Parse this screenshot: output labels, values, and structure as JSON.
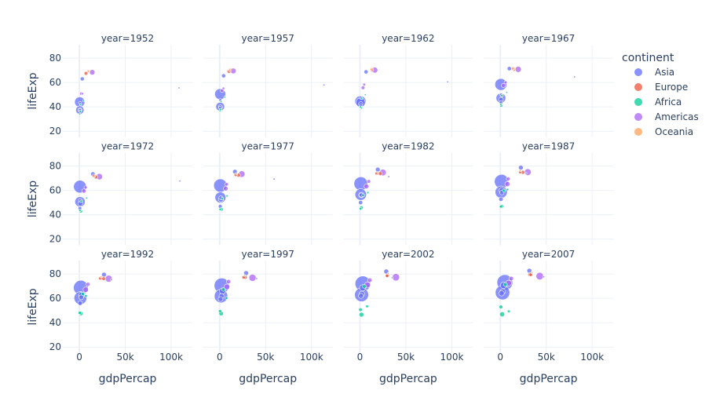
{
  "chart_data": {
    "type": "scatter",
    "facet_by": "year",
    "facet_columns": 4,
    "x": "gdpPercap",
    "y": "lifeExp",
    "size": "pop",
    "color": "continent",
    "xlabel": "gdpPercap",
    "ylabel": "lifeExp",
    "xlim": [
      -18000,
      123000
    ],
    "ylim": [
      15,
      91
    ],
    "xticks": [
      0,
      50000,
      100000
    ],
    "xtick_labels": [
      "0",
      "50k",
      "100k"
    ],
    "yticks": [
      20,
      40,
      60,
      80
    ],
    "grid": true,
    "legend": {
      "title": "continent",
      "placement": "right",
      "entries": [
        "Asia",
        "Europe",
        "Africa",
        "Americas",
        "Oceania"
      ]
    },
    "colors": {
      "Asia": "#636efa",
      "Europe": "#ef553b",
      "Africa": "#00cc96",
      "Americas": "#ab63fa",
      "Oceania": "#ffa15a"
    },
    "years": [
      1952,
      1957,
      1962,
      1967,
      1972,
      1977,
      1982,
      1987,
      1992,
      1997,
      2002,
      2007
    ],
    "facet_titles": [
      "year=1952",
      "year=1957",
      "year=1962",
      "year=1967",
      "year=1972",
      "year=1977",
      "year=1982",
      "year=1987",
      "year=1992",
      "year=1997",
      "year=2002",
      "year=2007"
    ],
    "point_fields": [
      "gdpPercap",
      "lifeExp",
      "pop_millions"
    ],
    "countries": [
      {
        "continent": "Asia",
        "points": [
          [
            400,
            44,
            556
          ],
          [
            576,
            50.5,
            637
          ],
          [
            488,
            44.5,
            666
          ],
          [
            613,
            58.4,
            755
          ],
          [
            677,
            63.1,
            862
          ],
          [
            741,
            64,
            943
          ],
          [
            962,
            65.5,
            1000
          ],
          [
            1379,
            67.3,
            1084
          ],
          [
            1656,
            68.7,
            1165
          ],
          [
            2289,
            70.4,
            1230
          ],
          [
            3119,
            72,
            1280
          ],
          [
            4959,
            73,
            1319
          ]
        ]
      },
      {
        "continent": "Asia",
        "points": [
          [
            547,
            37.4,
            372
          ],
          [
            590,
            40.2,
            409
          ],
          [
            658,
            43.6,
            454
          ],
          [
            701,
            47.2,
            506
          ],
          [
            724,
            50.7,
            567
          ],
          [
            813,
            54.2,
            634
          ],
          [
            856,
            56.6,
            708
          ],
          [
            977,
            58.6,
            788
          ],
          [
            1164,
            60.2,
            872
          ],
          [
            1459,
            61.8,
            959
          ],
          [
            1747,
            62.9,
            1034
          ],
          [
            2452,
            64.7,
            1110
          ]
        ]
      },
      {
        "continent": "Americas",
        "points": [
          [
            13990,
            68.4,
            157
          ],
          [
            14847,
            69.5,
            172
          ],
          [
            16173,
            70.2,
            187
          ],
          [
            19530,
            70.8,
            199
          ],
          [
            21806,
            71.3,
            210
          ],
          [
            24073,
            73.4,
            220
          ],
          [
            25010,
            74.7,
            232
          ],
          [
            29884,
            75,
            243
          ],
          [
            32004,
            76.1,
            257
          ],
          [
            35767,
            76.8,
            273
          ],
          [
            39097,
            77.3,
            288
          ],
          [
            42952,
            78.2,
            301
          ]
        ]
      },
      {
        "continent": "Asia",
        "points": [
          [
            3217,
            63,
            86
          ],
          [
            4318,
            65.5,
            91
          ],
          [
            6577,
            68.7,
            95
          ],
          [
            9848,
            71.4,
            100
          ],
          [
            14779,
            73.4,
            107
          ],
          [
            16610,
            75.4,
            114
          ],
          [
            19384,
            77.1,
            118
          ],
          [
            22376,
            78.7,
            122
          ],
          [
            26825,
            79.4,
            124
          ],
          [
            28817,
            80.7,
            126
          ],
          [
            28605,
            82,
            127
          ],
          [
            31656,
            82.6,
            127
          ]
        ]
      },
      {
        "continent": "Asia",
        "points": [
          [
            750,
            37.5,
            82
          ],
          [
            859,
            39.9,
            90
          ],
          [
            849,
            42.5,
            99
          ],
          [
            762,
            46,
            110
          ],
          [
            1111,
            49.2,
            121
          ],
          [
            1383,
            52.7,
            137
          ],
          [
            1517,
            56.2,
            153
          ],
          [
            1748,
            60.1,
            169
          ],
          [
            2383,
            62.7,
            184
          ],
          [
            3119,
            66,
            199
          ],
          [
            2874,
            68.6,
            211
          ],
          [
            3541,
            70.6,
            224
          ]
        ]
      },
      {
        "continent": "Americas",
        "points": [
          [
            2109,
            50.9,
            56
          ],
          [
            2487,
            53.3,
            65
          ],
          [
            3337,
            55.7,
            76
          ],
          [
            3430,
            57.6,
            88
          ],
          [
            4986,
            59.5,
            100
          ],
          [
            6660,
            61.5,
            114
          ],
          [
            7031,
            63.3,
            128
          ],
          [
            7807,
            65.2,
            142
          ],
          [
            6950,
            67.1,
            155
          ],
          [
            7958,
            69.4,
            168
          ],
          [
            8131,
            71,
            180
          ],
          [
            9066,
            72.4,
            190
          ]
        ]
      },
      {
        "continent": "Europe",
        "points": [
          [
            7144,
            67.5,
            69
          ],
          [
            10188,
            69.1,
            71
          ],
          [
            12902,
            70.3,
            74
          ],
          [
            14746,
            70.8,
            76
          ],
          [
            18016,
            71,
            79
          ],
          [
            20513,
            72.5,
            78
          ],
          [
            22032,
            73.8,
            78
          ],
          [
            24639,
            74.8,
            77
          ],
          [
            26505,
            76.1,
            80
          ],
          [
            27789,
            77.3,
            82
          ],
          [
            30036,
            78.7,
            82
          ],
          [
            32170,
            79.4,
            82
          ]
        ]
      },
      {
        "continent": "Europe",
        "points": [
          [
            9980,
            69.2,
            50
          ],
          [
            11283,
            70.4,
            51
          ],
          [
            12477,
            70.8,
            53
          ],
          [
            14143,
            71.4,
            55
          ],
          [
            15895,
            72,
            56
          ],
          [
            17429,
            72.8,
            56
          ],
          [
            18232,
            74,
            56
          ],
          [
            21665,
            75,
            57
          ],
          [
            22705,
            76.4,
            58
          ],
          [
            26075,
            77.2,
            59
          ],
          [
            29479,
            78.5,
            59
          ],
          [
            33203,
            79.4,
            61
          ]
        ]
      },
      {
        "continent": "Africa",
        "points": [
          [
            1077,
            36.3,
            33
          ],
          [
            1101,
            37.8,
            37
          ],
          [
            1151,
            39.4,
            41
          ],
          [
            1015,
            41,
            47
          ],
          [
            1698,
            42.8,
            53
          ],
          [
            1982,
            44.5,
            62
          ],
          [
            1577,
            45.8,
            74
          ],
          [
            1385,
            46.9,
            81
          ],
          [
            1619,
            47.5,
            93
          ],
          [
            1625,
            47.5,
            106
          ],
          [
            1615,
            46.6,
            119
          ],
          [
            2014,
            46.9,
            135
          ]
        ]
      },
      {
        "continent": "Africa",
        "points": [
          [
            1419,
            41.9,
            22
          ],
          [
            1459,
            44.4,
            25
          ],
          [
            1693,
            47,
            28
          ],
          [
            1815,
            49.3,
            31
          ],
          [
            2024,
            51.1,
            34
          ],
          [
            2785,
            53.3,
            38
          ],
          [
            3504,
            56,
            45
          ],
          [
            3885,
            59.8,
            52
          ],
          [
            3795,
            63.7,
            59
          ],
          [
            4173,
            67.2,
            66
          ],
          [
            4755,
            69.8,
            73
          ],
          [
            5581,
            71.3,
            80
          ]
        ]
      },
      {
        "continent": "Africa",
        "points": [
          [
            362,
            34.1,
            20
          ],
          [
            378,
            36.7,
            22
          ],
          [
            419,
            40,
            24
          ],
          [
            516,
            42.2,
            28
          ],
          [
            566,
            43.5,
            30
          ],
          [
            556,
            44.5,
            34
          ],
          [
            577,
            44.9,
            38
          ],
          [
            573,
            46.7,
            42
          ],
          [
            421,
            48.1,
            52
          ],
          [
            515,
            49.4,
            59
          ],
          [
            530,
            50.7,
            67
          ],
          [
            691,
            52.9,
            77
          ]
        ]
      },
      {
        "continent": "Africa",
        "points": [
          [
            4725,
            45,
            14
          ],
          [
            5487,
            48,
            16
          ],
          [
            5769,
            49.9,
            18
          ],
          [
            7114,
            51.9,
            20
          ],
          [
            7765,
            53.7,
            23
          ],
          [
            8028,
            55.5,
            27
          ],
          [
            8568,
            58.2,
            31
          ],
          [
            7826,
            60.7,
            35
          ],
          [
            7225,
            61.9,
            39
          ],
          [
            7479,
            60.2,
            42
          ],
          [
            7711,
            53.4,
            44
          ],
          [
            9270,
            49.3,
            44
          ]
        ]
      },
      {
        "continent": "Oceania",
        "points": [
          [
            10040,
            69.1,
            8.7
          ],
          [
            10950,
            70.3,
            9.7
          ],
          [
            12217,
            70.9,
            10.8
          ],
          [
            14526,
            71.1,
            11.9
          ],
          [
            16789,
            71.9,
            13.2
          ],
          [
            18334,
            73.5,
            14.1
          ],
          [
            19477,
            74.7,
            15.2
          ],
          [
            21889,
            76.3,
            16.3
          ],
          [
            23425,
            77.6,
            17.5
          ],
          [
            26998,
            78.8,
            18.6
          ],
          [
            30688,
            80.4,
            19.5
          ],
          [
            34435,
            81.2,
            20.4
          ]
        ]
      },
      {
        "continent": "Asia",
        "points": [
          [
            108382,
            55.6,
            0.16
          ],
          [
            113523,
            58,
            0.21
          ],
          [
            95458,
            60.5,
            0.36
          ],
          [
            80895,
            64.6,
            0.58
          ],
          [
            109348,
            67.7,
            0.84
          ],
          [
            59265,
            69.3,
            1.14
          ],
          [
            31354,
            71.3,
            1.5
          ],
          [
            28118,
            74.2,
            1.9
          ],
          [
            34932,
            75.2,
            1.4
          ],
          [
            40301,
            76.2,
            1.8
          ],
          [
            35110,
            76.9,
            2.1
          ],
          [
            47307,
            77.6,
            2.5
          ]
        ]
      },
      {
        "continent": "Americas",
        "points": [
          [
            3478,
            50.8,
            30
          ],
          [
            4132,
            55.2,
            35
          ],
          [
            4582,
            58.3,
            41
          ],
          [
            5755,
            60.1,
            47
          ],
          [
            6809,
            62.4,
            55
          ],
          [
            7675,
            65,
            63
          ],
          [
            9611,
            67.4,
            71
          ],
          [
            8688,
            69.5,
            80
          ],
          [
            9472,
            71.5,
            88
          ],
          [
            9767,
            73.7,
            96
          ],
          [
            10742,
            74.9,
            102
          ],
          [
            11978,
            76.2,
            108
          ]
        ]
      },
      {
        "continent": "Asia",
        "points": [
          [
            684,
            37.5,
            47
          ],
          [
            662,
            39.3,
            51
          ],
          [
            686,
            41.2,
            57
          ],
          [
            721,
            43.5,
            63
          ],
          [
            630,
            45.3,
            70
          ],
          [
            660,
            46.9,
            80
          ],
          [
            677,
            50,
            93
          ],
          [
            752,
            52.8,
            103
          ],
          [
            837,
            56,
            113
          ],
          [
            972,
            59.4,
            123
          ],
          [
            1136,
            62,
            136
          ],
          [
            1391,
            64.1,
            150
          ]
        ]
      },
      {
        "continent": "Asia",
        "points": [
          [
            685,
            43.4,
            41
          ],
          [
            747,
            45.6,
            46
          ],
          [
            804,
            47.7,
            51
          ],
          [
            942,
            49.8,
            58
          ],
          [
            1050,
            51.9,
            66
          ],
          [
            1176,
            54,
            74
          ],
          [
            1443,
            56.2,
            91
          ],
          [
            1705,
            58.2,
            105
          ],
          [
            1972,
            60.8,
            120
          ],
          [
            2049,
            61.8,
            136
          ],
          [
            2093,
            63.6,
            154
          ],
          [
            2606,
            65.5,
            169
          ]
        ]
      }
    ]
  }
}
